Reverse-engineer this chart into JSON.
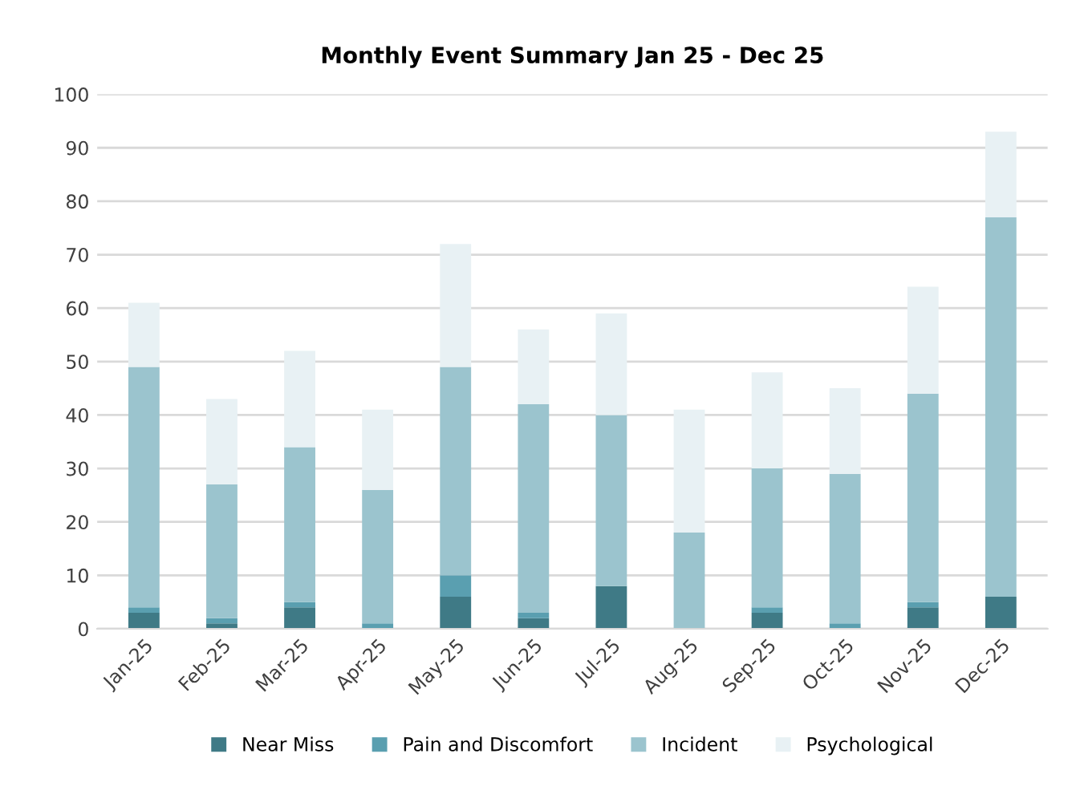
{
  "chart_data": {
    "type": "bar",
    "title": "Monthly Event Summary Jan 25 - Dec 25",
    "stacked": true,
    "categories": [
      "Jan-25",
      "Feb-25",
      "Mar-25",
      "Apr-25",
      "May-25",
      "Jun-25",
      "Jul-25",
      "Aug-25",
      "Sep-25",
      "Oct-25",
      "Nov-25",
      "Dec-25"
    ],
    "series": [
      {
        "name": "Near Miss",
        "color": "#3f7a86",
        "values": [
          3,
          1,
          4,
          0,
          6,
          2,
          8,
          0,
          3,
          0,
          4,
          6
        ]
      },
      {
        "name": "Pain and Discomfort",
        "color": "#5a9fb0",
        "values": [
          1,
          1,
          1,
          1,
          4,
          1,
          0,
          0,
          1,
          1,
          1,
          0
        ]
      },
      {
        "name": "Incident",
        "color": "#9bc4ce",
        "values": [
          45,
          25,
          29,
          25,
          39,
          39,
          32,
          18,
          26,
          28,
          39,
          71
        ]
      },
      {
        "name": "Psychological",
        "color": "#e8f1f4",
        "values": [
          12,
          16,
          18,
          15,
          23,
          14,
          19,
          23,
          18,
          16,
          20,
          16
        ]
      }
    ],
    "ylim": [
      0,
      100
    ],
    "yticks": [
      0,
      10,
      20,
      30,
      40,
      50,
      60,
      70,
      80,
      90,
      100
    ],
    "grid": "y",
    "legend": "bottom"
  }
}
